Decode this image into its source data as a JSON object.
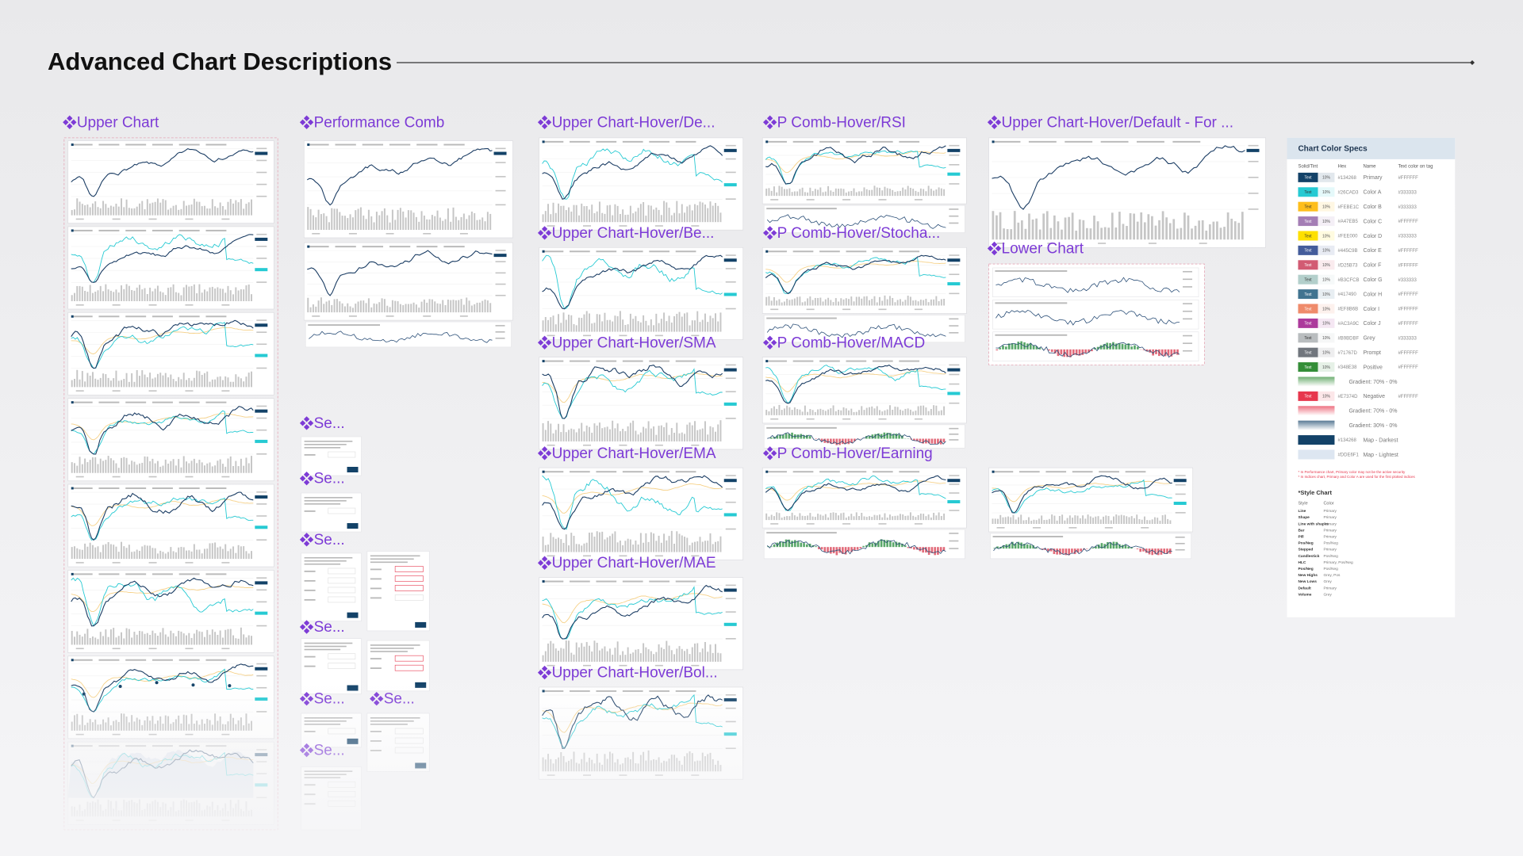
{
  "header": {
    "title": "Advanced Chart Descriptions"
  },
  "frames": [
    {
      "label": "Upper Chart"
    },
    {
      "label": "Performance Comb"
    },
    {
      "label": "Upper Chart-Hover/De..."
    },
    {
      "label": "Upper Chart-Hover/Be..."
    },
    {
      "label": "Upper Chart-Hover/SMA"
    },
    {
      "label": "Upper Chart-Hover/EMA"
    },
    {
      "label": "Upper Chart-Hover/MAE"
    },
    {
      "label": "Upper Chart-Hover/Bol..."
    },
    {
      "label": "P Comb-Hover/RSI"
    },
    {
      "label": "P Comb-Hover/Stocha..."
    },
    {
      "label": "P Comb-Hover/MACD"
    },
    {
      "label": "P Comb-Hover/Earning"
    },
    {
      "label": "Upper Chart-Hover/Default - For ..."
    },
    {
      "label": "Lower Chart"
    },
    {
      "label": "Se..."
    },
    {
      "label": "Se..."
    },
    {
      "label": "Se..."
    },
    {
      "label": "Se..."
    },
    {
      "label": "Se..."
    },
    {
      "label": "Se..."
    },
    {
      "label": "Se..."
    }
  ],
  "color_specs": {
    "title": "Chart Color Specs",
    "columns": [
      "Solid/Tint",
      "Hex",
      "Name",
      "Text color on tag"
    ],
    "rows": [
      {
        "tag": "Text",
        "tint": "10%",
        "hex": "#134268",
        "name": "Primary",
        "text_color": "#FFFFFF"
      },
      {
        "tag": "Text",
        "tint": "10%",
        "hex": "#26CAD3",
        "name": "Color A",
        "text_color": "#333333"
      },
      {
        "tag": "Text",
        "tint": "10%",
        "hex": "#FEBE1C",
        "name": "Color B",
        "text_color": "#333333"
      },
      {
        "tag": "Text",
        "tint": "10%",
        "hex": "#A47EB5",
        "name": "Color C",
        "text_color": "#FFFFFF"
      },
      {
        "tag": "Text",
        "tint": "10%",
        "hex": "#FEE000",
        "name": "Color D",
        "text_color": "#333333"
      },
      {
        "tag": "Text",
        "tint": "10%",
        "hex": "#445C9B",
        "name": "Color E",
        "text_color": "#FFFFFF"
      },
      {
        "tag": "Text",
        "tint": "10%",
        "hex": "#D25B73",
        "name": "Color F",
        "text_color": "#FFFFFF"
      },
      {
        "tag": "Text",
        "tint": "10%",
        "hex": "#B3CFCB",
        "name": "Color G",
        "text_color": "#333333"
      },
      {
        "tag": "Text",
        "tint": "10%",
        "hex": "#417490",
        "name": "Color H",
        "text_color": "#FFFFFF"
      },
      {
        "tag": "Text",
        "tint": "10%",
        "hex": "#EF8B6B",
        "name": "Color I",
        "text_color": "#FFFFFF"
      },
      {
        "tag": "Text",
        "tint": "10%",
        "hex": "#AC3A9C",
        "name": "Color J",
        "text_color": "#FFFFFF"
      },
      {
        "tag": "Text",
        "tint": "10%",
        "hex": "#B9BDBF",
        "name": "Grey",
        "text_color": "#333333"
      },
      {
        "tag": "Text",
        "tint": "10%",
        "hex": "#71767D",
        "name": "Prompt",
        "text_color": "#FFFFFF"
      },
      {
        "tag": "Text",
        "tint": "10%",
        "hex": "#348E38",
        "name": "Positive",
        "text_color": "#FFFFFF"
      },
      {
        "gradient": "#348E38",
        "name": "Gradient: 70% - 0%"
      },
      {
        "tag": "Text",
        "tint": "10%",
        "hex": "#E7374D",
        "name": "Negative",
        "text_color": "#FFFFFF"
      },
      {
        "gradient": "#E7374D",
        "name": "Gradient: 70% - 0%"
      },
      {
        "gradient": "#134268",
        "name": "Gradient: 30% - 0%"
      },
      {
        "hex": "#134268",
        "name": "Map - Darkest"
      },
      {
        "hex": "#DDE6F1",
        "name": "Map - Lightest"
      }
    ],
    "notes": [
      "* In Performance chart, Primary color may not be the active security",
      "* In Indices chart, Primary and Color A are used for the first plotted indices"
    ]
  },
  "style_chart": {
    "title": "*Style Chart",
    "columns": [
      "Style",
      "Color"
    ],
    "rows": [
      [
        "Line",
        "Primary"
      ],
      [
        "Shape",
        "Primary"
      ],
      [
        "Line with shapes",
        "Primary"
      ],
      [
        "Bar",
        "Primary"
      ],
      [
        "Pill",
        "Primary"
      ],
      [
        "Pos/Neg",
        "Pos/Neg"
      ],
      [
        "Stepped",
        "Primary"
      ],
      [
        "Candlestick",
        "Pos/Neg"
      ],
      [
        "HLC",
        "Primary, Pos/Neg"
      ],
      [
        "Pos/Neg",
        "Pos/Neg"
      ],
      [
        "New Highs",
        "Grey, Pos"
      ],
      [
        "New Lows",
        "Grey"
      ],
      [
        "Default",
        "Primary"
      ],
      [
        "Volume",
        "Grey"
      ]
    ]
  }
}
